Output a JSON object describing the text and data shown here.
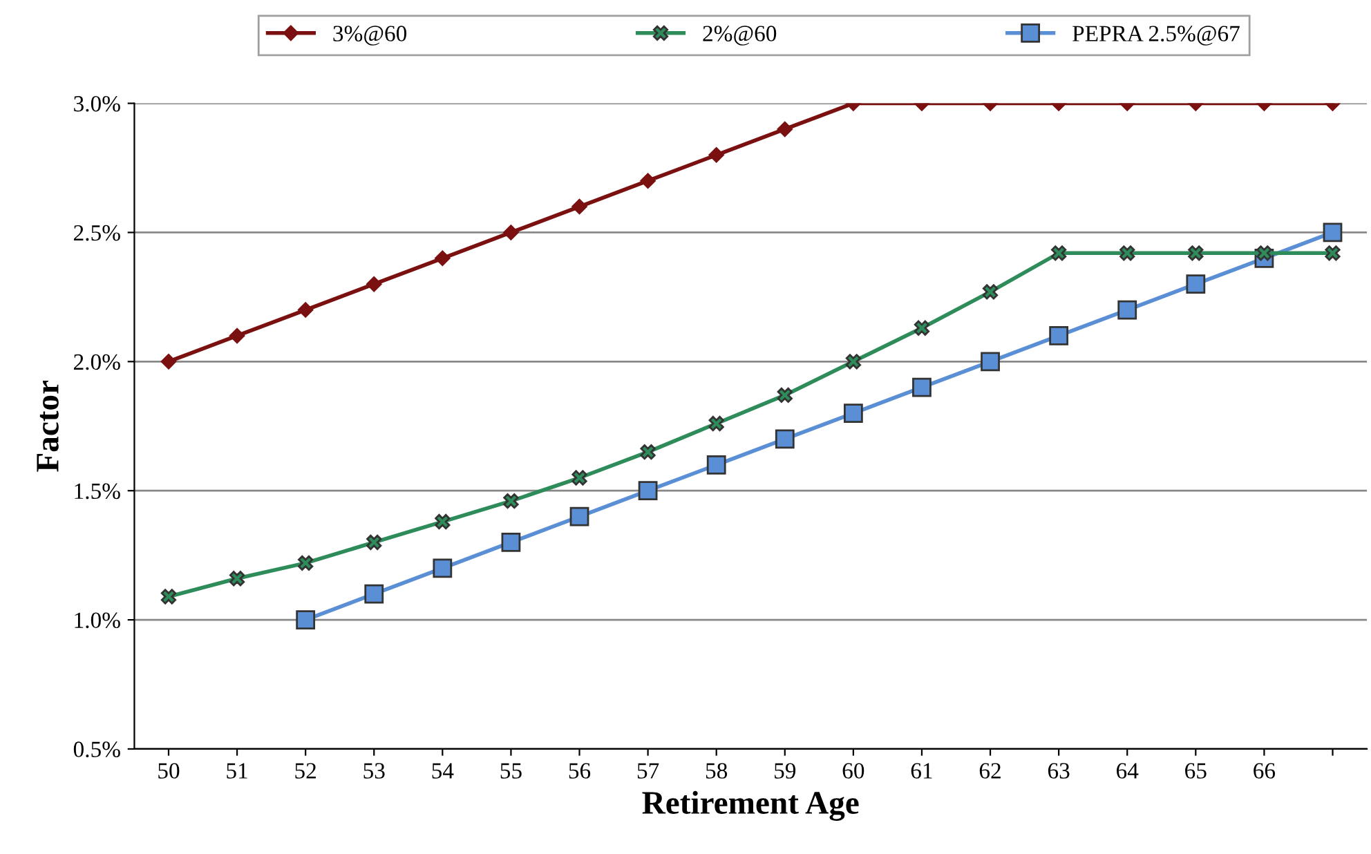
{
  "chart_data": {
    "type": "line",
    "xlabel": "Retirement Age",
    "ylabel": "Factor",
    "categories": [
      "50",
      "51",
      "52",
      "53",
      "54",
      "55",
      "56",
      "57",
      "58",
      "59",
      "60",
      "61",
      "62",
      "63",
      "64",
      "65",
      "66",
      null
    ],
    "series": [
      {
        "name": "3%@60",
        "color": "#7b1010",
        "marker": "diamond",
        "values": [
          2.0,
          2.1,
          2.2,
          2.3,
          2.4,
          2.5,
          2.6,
          2.7,
          2.8,
          2.9,
          3.0,
          3.0,
          3.0,
          3.0,
          3.0,
          3.0,
          3.0,
          3.0
        ]
      },
      {
        "name": "2%@60",
        "color": "#2e8b5a",
        "marker": "cross",
        "values": [
          1.09,
          1.16,
          1.22,
          1.3,
          1.38,
          1.46,
          1.55,
          1.65,
          1.76,
          1.87,
          2.0,
          2.13,
          2.27,
          2.42,
          2.42,
          2.42,
          2.42,
          2.42
        ]
      },
      {
        "name": "PEPRA 2.5%@67",
        "color": "#5a8fd6",
        "marker": "square",
        "values": [
          null,
          null,
          1.0,
          1.1,
          1.2,
          1.3,
          1.4,
          1.5,
          1.6,
          1.7,
          1.8,
          1.9,
          2.0,
          2.1,
          2.2,
          2.3,
          2.4,
          2.5
        ]
      }
    ],
    "ylim": [
      0.5,
      3.0
    ],
    "yticks": [
      {
        "value": 0.5,
        "label": "0.5%"
      },
      {
        "value": 1.0,
        "label": "1.0%"
      },
      {
        "value": 1.5,
        "label": "1.5%"
      },
      {
        "value": 2.0,
        "label": "2.0%"
      },
      {
        "value": 2.5,
        "label": "2.5%"
      },
      {
        "value": 3.0,
        "label": "3.0%"
      }
    ],
    "grid": "y",
    "legend": "top",
    "line_style": "solid"
  }
}
